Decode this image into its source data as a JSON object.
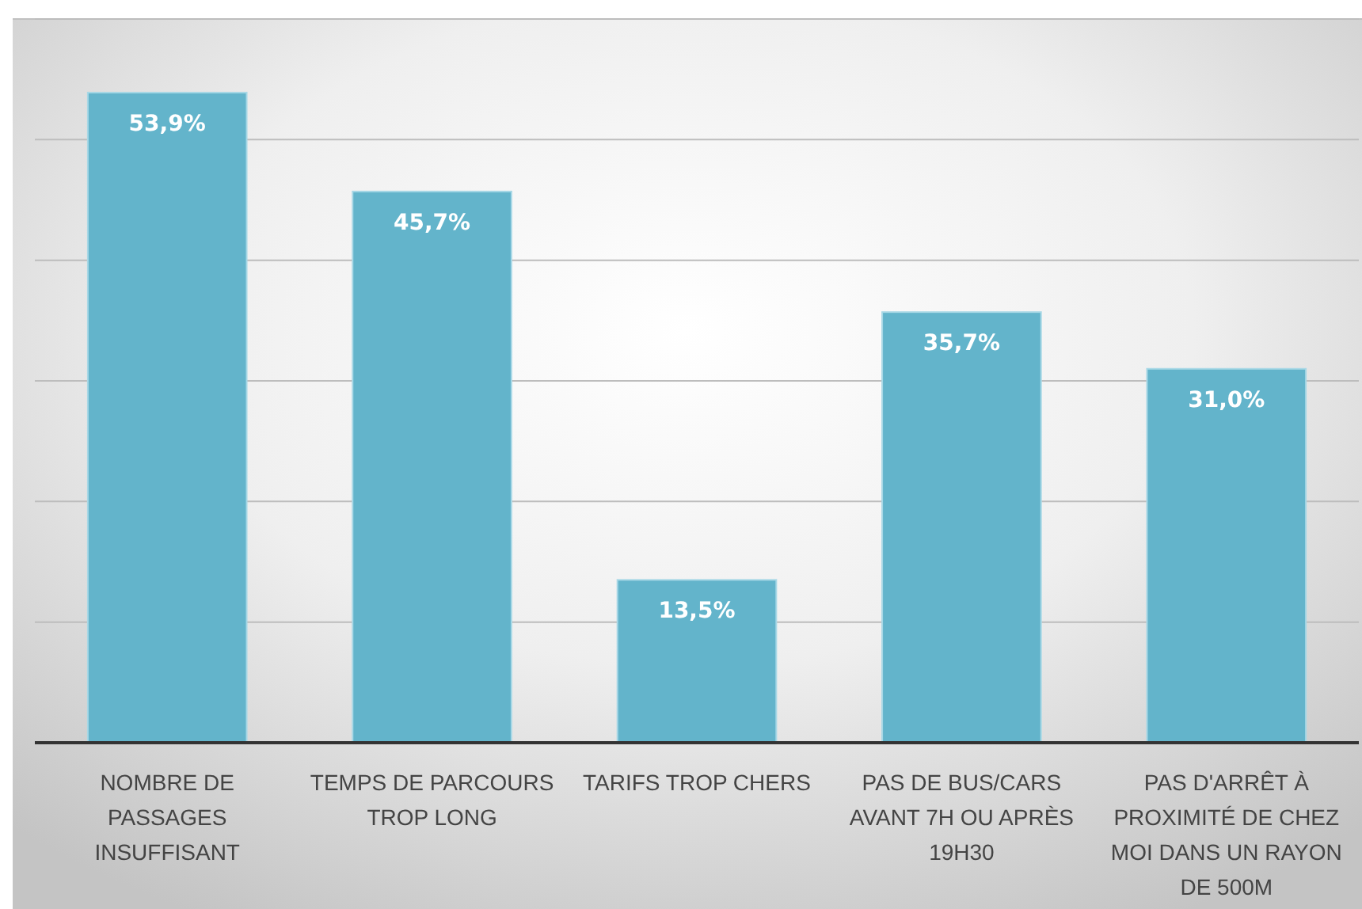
{
  "chart_data": {
    "type": "bar",
    "categories": [
      "NOMBRE DE PASSAGES INSUFFISANT",
      "TEMPS DE PARCOURS TROP LONG",
      "TARIFS TROP CHERS",
      "PAS DE BUS/CARS AVANT 7H OU APRÈS 19H30",
      "PAS D'ARRÊT À PROXIMITÉ DE CHEZ MOI DANS UN RAYON DE 500M"
    ],
    "values": [
      53.9,
      45.7,
      13.5,
      35.7,
      31.0
    ],
    "value_labels": [
      "53,9%",
      "45,7%",
      "13,5%",
      "35,7%",
      "31,0%"
    ],
    "color": "#63b4cb",
    "ylim": [
      0,
      60
    ],
    "yticks": [
      {
        "value": 0,
        "label": null
      },
      {
        "value": 10,
        "label": null
      },
      {
        "value": 20,
        "label": null
      },
      {
        "value": 30,
        "label": null
      },
      {
        "value": 40,
        "label": null
      },
      {
        "value": 50,
        "label": null
      },
      {
        "value": 60,
        "label": null
      }
    ],
    "grid": "y",
    "tick_labels": "x"
  }
}
